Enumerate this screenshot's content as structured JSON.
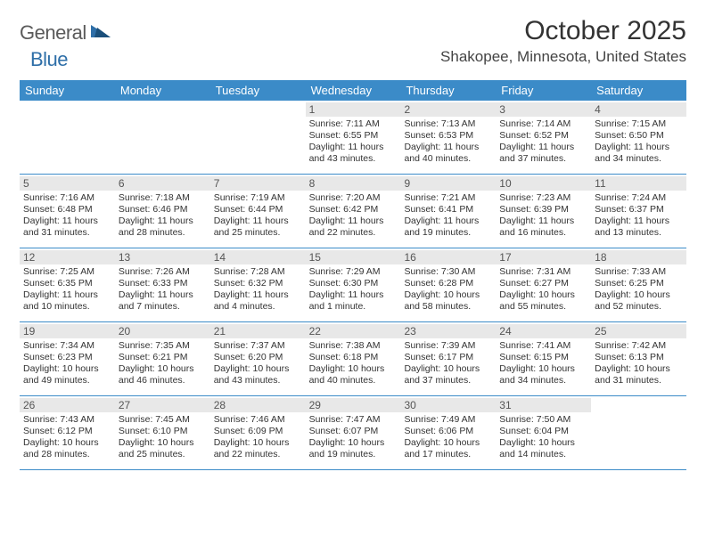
{
  "logo": {
    "text1": "General",
    "text2": "Blue"
  },
  "title": "October 2025",
  "location": "Shakopee, Minnesota, United States",
  "colors": {
    "header_bg": "#3b8bc8",
    "header_text": "#ffffff",
    "daybar_bg": "#e8e8e8",
    "daybar_text": "#555555",
    "body_text": "#333333",
    "rule": "#3b8bc8",
    "logo_gray": "#5a5a5a",
    "logo_blue": "#2f6fa8"
  },
  "weekdays": [
    "Sunday",
    "Monday",
    "Tuesday",
    "Wednesday",
    "Thursday",
    "Friday",
    "Saturday"
  ],
  "weeks": [
    [
      null,
      null,
      null,
      {
        "n": "1",
        "sr": "7:11 AM",
        "ss": "6:55 PM",
        "dlh": "11",
        "dlm": "43"
      },
      {
        "n": "2",
        "sr": "7:13 AM",
        "ss": "6:53 PM",
        "dlh": "11",
        "dlm": "40"
      },
      {
        "n": "3",
        "sr": "7:14 AM",
        "ss": "6:52 PM",
        "dlh": "11",
        "dlm": "37"
      },
      {
        "n": "4",
        "sr": "7:15 AM",
        "ss": "6:50 PM",
        "dlh": "11",
        "dlm": "34"
      }
    ],
    [
      {
        "n": "5",
        "sr": "7:16 AM",
        "ss": "6:48 PM",
        "dlh": "11",
        "dlm": "31"
      },
      {
        "n": "6",
        "sr": "7:18 AM",
        "ss": "6:46 PM",
        "dlh": "11",
        "dlm": "28"
      },
      {
        "n": "7",
        "sr": "7:19 AM",
        "ss": "6:44 PM",
        "dlh": "11",
        "dlm": "25"
      },
      {
        "n": "8",
        "sr": "7:20 AM",
        "ss": "6:42 PM",
        "dlh": "11",
        "dlm": "22"
      },
      {
        "n": "9",
        "sr": "7:21 AM",
        "ss": "6:41 PM",
        "dlh": "11",
        "dlm": "19"
      },
      {
        "n": "10",
        "sr": "7:23 AM",
        "ss": "6:39 PM",
        "dlh": "11",
        "dlm": "16"
      },
      {
        "n": "11",
        "sr": "7:24 AM",
        "ss": "6:37 PM",
        "dlh": "11",
        "dlm": "13"
      }
    ],
    [
      {
        "n": "12",
        "sr": "7:25 AM",
        "ss": "6:35 PM",
        "dlh": "11",
        "dlm": "10"
      },
      {
        "n": "13",
        "sr": "7:26 AM",
        "ss": "6:33 PM",
        "dlh": "11",
        "dlm": "7"
      },
      {
        "n": "14",
        "sr": "7:28 AM",
        "ss": "6:32 PM",
        "dlh": "11",
        "dlm": "4"
      },
      {
        "n": "15",
        "sr": "7:29 AM",
        "ss": "6:30 PM",
        "dlh": "11",
        "dlm": "1",
        "dlm_unit": "minute"
      },
      {
        "n": "16",
        "sr": "7:30 AM",
        "ss": "6:28 PM",
        "dlh": "10",
        "dlm": "58"
      },
      {
        "n": "17",
        "sr": "7:31 AM",
        "ss": "6:27 PM",
        "dlh": "10",
        "dlm": "55"
      },
      {
        "n": "18",
        "sr": "7:33 AM",
        "ss": "6:25 PM",
        "dlh": "10",
        "dlm": "52"
      }
    ],
    [
      {
        "n": "19",
        "sr": "7:34 AM",
        "ss": "6:23 PM",
        "dlh": "10",
        "dlm": "49"
      },
      {
        "n": "20",
        "sr": "7:35 AM",
        "ss": "6:21 PM",
        "dlh": "10",
        "dlm": "46"
      },
      {
        "n": "21",
        "sr": "7:37 AM",
        "ss": "6:20 PM",
        "dlh": "10",
        "dlm": "43"
      },
      {
        "n": "22",
        "sr": "7:38 AM",
        "ss": "6:18 PM",
        "dlh": "10",
        "dlm": "40"
      },
      {
        "n": "23",
        "sr": "7:39 AM",
        "ss": "6:17 PM",
        "dlh": "10",
        "dlm": "37"
      },
      {
        "n": "24",
        "sr": "7:41 AM",
        "ss": "6:15 PM",
        "dlh": "10",
        "dlm": "34"
      },
      {
        "n": "25",
        "sr": "7:42 AM",
        "ss": "6:13 PM",
        "dlh": "10",
        "dlm": "31"
      }
    ],
    [
      {
        "n": "26",
        "sr": "7:43 AM",
        "ss": "6:12 PM",
        "dlh": "10",
        "dlm": "28"
      },
      {
        "n": "27",
        "sr": "7:45 AM",
        "ss": "6:10 PM",
        "dlh": "10",
        "dlm": "25"
      },
      {
        "n": "28",
        "sr": "7:46 AM",
        "ss": "6:09 PM",
        "dlh": "10",
        "dlm": "22"
      },
      {
        "n": "29",
        "sr": "7:47 AM",
        "ss": "6:07 PM",
        "dlh": "10",
        "dlm": "19"
      },
      {
        "n": "30",
        "sr": "7:49 AM",
        "ss": "6:06 PM",
        "dlh": "10",
        "dlm": "17"
      },
      {
        "n": "31",
        "sr": "7:50 AM",
        "ss": "6:04 PM",
        "dlh": "10",
        "dlm": "14"
      },
      null
    ]
  ]
}
